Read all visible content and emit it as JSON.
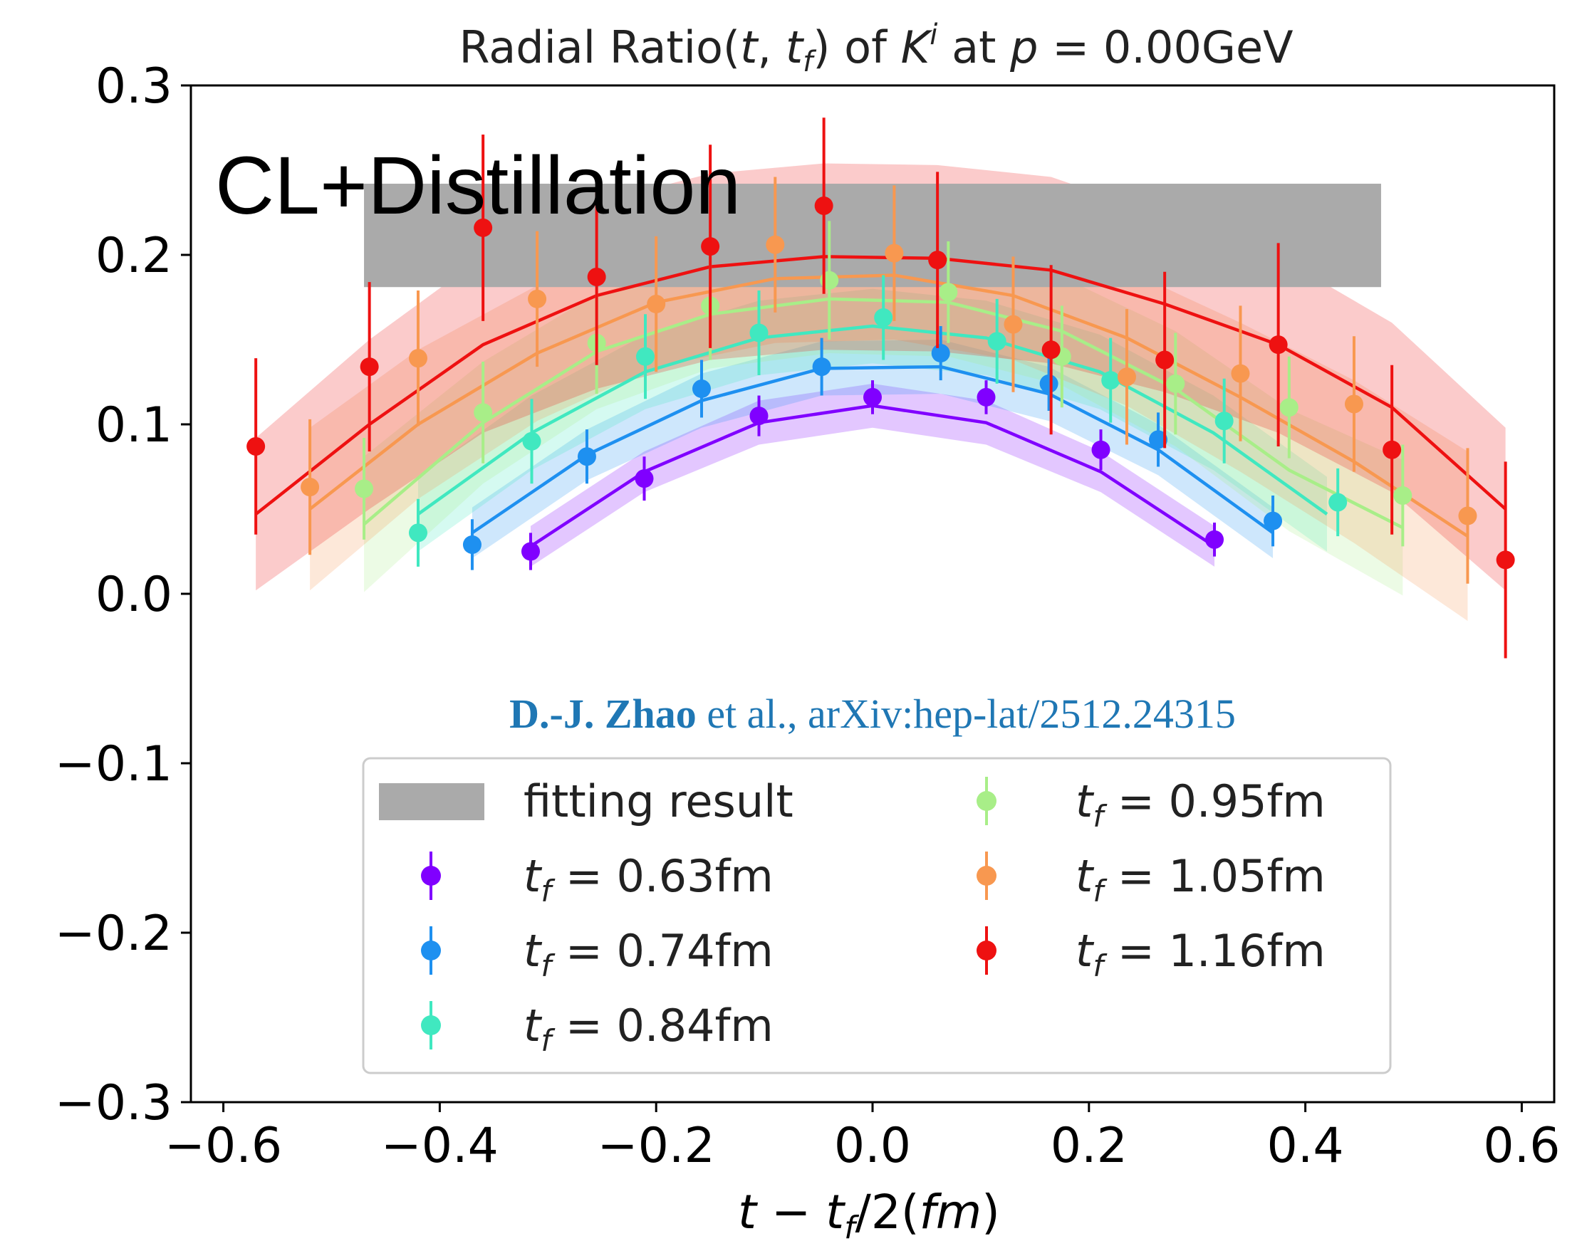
{
  "chart_data": {
    "type": "scatter",
    "title": {
      "prefix": "Radial Ratio(",
      "t": "t",
      "sep": ", ",
      "tf": "t",
      "f": "f",
      "mid": ") of ",
      "K": "K",
      "i": "i",
      "at": " at ",
      "p": "p",
      "suffix": " = 0.00GeV"
    },
    "xlabel": {
      "t": "t",
      "minus": " − ",
      "tf": "t",
      "f": "f",
      "rest": "/2(",
      "fm": "fm",
      "close": ")"
    },
    "overlay_text": "CL+Distillation",
    "citation": {
      "authors": "D.-J. Zhao",
      "rest": " et al., arXiv:hep-lat/2512.24315"
    },
    "xlim": [
      -0.63,
      0.63
    ],
    "ylim": [
      -0.3,
      0.3
    ],
    "x_ticks": [
      -0.6,
      -0.4,
      -0.2,
      0.0,
      0.2,
      0.4,
      0.6
    ],
    "x_tick_labels": [
      "−0.6",
      "−0.4",
      "−0.2",
      "0.0",
      "0.2",
      "0.4",
      "0.6"
    ],
    "y_ticks": [
      -0.3,
      -0.2,
      -0.1,
      0.0,
      0.1,
      0.2,
      0.3
    ],
    "y_tick_labels": [
      "−0.3",
      "−0.2",
      "−0.1",
      "0.0",
      "0.1",
      "0.2",
      "0.3"
    ],
    "grid": false,
    "legend_placement": "lower-center",
    "fitting_result": {
      "label": "fitting result",
      "x_range": [
        -0.47,
        0.47
      ],
      "y_range": [
        0.181,
        0.242
      ],
      "color": "#aaaaaa"
    },
    "series": [
      {
        "name_var": "t",
        "name_sub": "f",
        "name_value": " = 0.63fm",
        "color": "#8000ff",
        "x": [
          -0.316,
          -0.211,
          -0.105,
          0.0,
          0.105,
          0.211,
          0.316
        ],
        "y": [
          0.025,
          0.068,
          0.105,
          0.116,
          0.116,
          0.085,
          0.032
        ],
        "err": [
          0.011,
          0.013,
          0.012,
          0.01,
          0.01,
          0.012,
          0.01
        ],
        "band_x": [
          -0.316,
          -0.211,
          -0.105,
          0.0,
          0.105,
          0.211,
          0.316
        ],
        "band_y": [
          0.028,
          0.072,
          0.101,
          0.111,
          0.101,
          0.072,
          0.028
        ],
        "band_err": [
          0.012,
          0.012,
          0.013,
          0.013,
          0.013,
          0.012,
          0.012
        ]
      },
      {
        "name_var": "t",
        "name_sub": "f",
        "name_value": " = 0.74fm",
        "color": "#1e90f0",
        "x": [
          -0.37,
          -0.264,
          -0.158,
          -0.047,
          0.063,
          0.163,
          0.264,
          0.37
        ],
        "y": [
          0.029,
          0.081,
          0.121,
          0.134,
          0.142,
          0.124,
          0.091,
          0.043
        ],
        "err": [
          0.015,
          0.016,
          0.017,
          0.017,
          0.016,
          0.016,
          0.016,
          0.015
        ],
        "band_x": [
          -0.37,
          -0.264,
          -0.158,
          -0.047,
          0.063,
          0.163,
          0.264,
          0.37
        ],
        "band_y": [
          0.036,
          0.082,
          0.114,
          0.133,
          0.134,
          0.118,
          0.085,
          0.036
        ],
        "band_err": [
          0.015,
          0.015,
          0.016,
          0.016,
          0.016,
          0.016,
          0.015,
          0.015
        ]
      },
      {
        "name_var": "t",
        "name_sub": "f",
        "name_value": " = 0.84fm",
        "color": "#40e8c0",
        "x": [
          -0.42,
          -0.315,
          -0.21,
          -0.105,
          0.01,
          0.115,
          0.22,
          0.325,
          0.43
        ],
        "y": [
          0.036,
          0.09,
          0.14,
          0.154,
          0.163,
          0.149,
          0.126,
          0.102,
          0.054
        ],
        "err": [
          0.02,
          0.025,
          0.025,
          0.025,
          0.025,
          0.025,
          0.025,
          0.025,
          0.02
        ],
        "band_x": [
          -0.42,
          -0.315,
          -0.21,
          -0.105,
          0.0,
          0.105,
          0.21,
          0.315,
          0.42
        ],
        "band_y": [
          0.047,
          0.095,
          0.131,
          0.151,
          0.158,
          0.151,
          0.131,
          0.095,
          0.047
        ],
        "band_err": [
          0.022,
          0.022,
          0.022,
          0.022,
          0.022,
          0.022,
          0.022,
          0.022,
          0.022
        ]
      },
      {
        "name_var": "t",
        "name_sub": "f",
        "name_value": " = 0.95fm",
        "color": "#a8ee88",
        "x": [
          -0.47,
          -0.36,
          -0.255,
          -0.15,
          -0.04,
          0.07,
          0.175,
          0.28,
          0.385,
          0.49
        ],
        "y": [
          0.062,
          0.107,
          0.148,
          0.17,
          0.185,
          0.178,
          0.14,
          0.124,
          0.11,
          0.058
        ],
        "err": [
          0.03,
          0.03,
          0.03,
          0.032,
          0.035,
          0.03,
          0.03,
          0.03,
          0.03,
          0.03
        ],
        "band_x": [
          -0.47,
          -0.36,
          -0.255,
          -0.15,
          -0.04,
          0.07,
          0.175,
          0.28,
          0.385,
          0.49
        ],
        "band_y": [
          0.041,
          0.101,
          0.143,
          0.165,
          0.174,
          0.172,
          0.155,
          0.121,
          0.073,
          0.039
        ],
        "band_err": [
          0.04,
          0.036,
          0.034,
          0.032,
          0.032,
          0.032,
          0.032,
          0.034,
          0.036,
          0.04
        ]
      },
      {
        "name_var": "t",
        "name_sub": "f",
        "name_value": " = 1.05fm",
        "color": "#f89850",
        "x": [
          -0.52,
          -0.42,
          -0.31,
          -0.2,
          -0.09,
          0.02,
          0.13,
          0.235,
          0.34,
          0.445,
          0.55
        ],
        "y": [
          0.063,
          0.139,
          0.174,
          0.171,
          0.206,
          0.201,
          0.159,
          0.128,
          0.13,
          0.112,
          0.046
        ],
        "err": [
          0.04,
          0.04,
          0.04,
          0.04,
          0.04,
          0.04,
          0.04,
          0.04,
          0.04,
          0.04,
          0.04
        ],
        "band_x": [
          -0.52,
          -0.42,
          -0.31,
          -0.2,
          -0.09,
          0.02,
          0.13,
          0.235,
          0.34,
          0.445,
          0.55
        ],
        "band_y": [
          0.05,
          0.1,
          0.142,
          0.172,
          0.186,
          0.188,
          0.176,
          0.151,
          0.116,
          0.078,
          0.034
        ],
        "band_err": [
          0.048,
          0.044,
          0.04,
          0.038,
          0.038,
          0.038,
          0.038,
          0.04,
          0.044,
          0.048,
          0.05
        ]
      },
      {
        "name_var": "t",
        "name_sub": "f",
        "name_value": " = 1.16fm",
        "color": "#ee1111",
        "x": [
          -0.57,
          -0.465,
          -0.36,
          -0.255,
          -0.15,
          -0.045,
          0.06,
          0.165,
          0.27,
          0.375,
          0.48,
          0.585
        ],
        "y": [
          0.087,
          0.134,
          0.216,
          0.187,
          0.205,
          0.229,
          0.197,
          0.144,
          0.138,
          0.147,
          0.085,
          0.02
        ],
        "err": [
          0.052,
          0.05,
          0.055,
          0.052,
          0.06,
          0.052,
          0.052,
          0.05,
          0.052,
          0.06,
          0.05,
          0.058
        ],
        "band_x": [
          -0.57,
          -0.465,
          -0.36,
          -0.255,
          -0.15,
          -0.045,
          0.06,
          0.165,
          0.27,
          0.375,
          0.48,
          0.585
        ],
        "band_y": [
          0.047,
          0.1,
          0.147,
          0.176,
          0.193,
          0.199,
          0.198,
          0.191,
          0.171,
          0.147,
          0.11,
          0.05
        ],
        "band_err": [
          0.045,
          0.05,
          0.052,
          0.055,
          0.055,
          0.055,
          0.055,
          0.055,
          0.052,
          0.052,
          0.05,
          0.048
        ]
      }
    ]
  }
}
